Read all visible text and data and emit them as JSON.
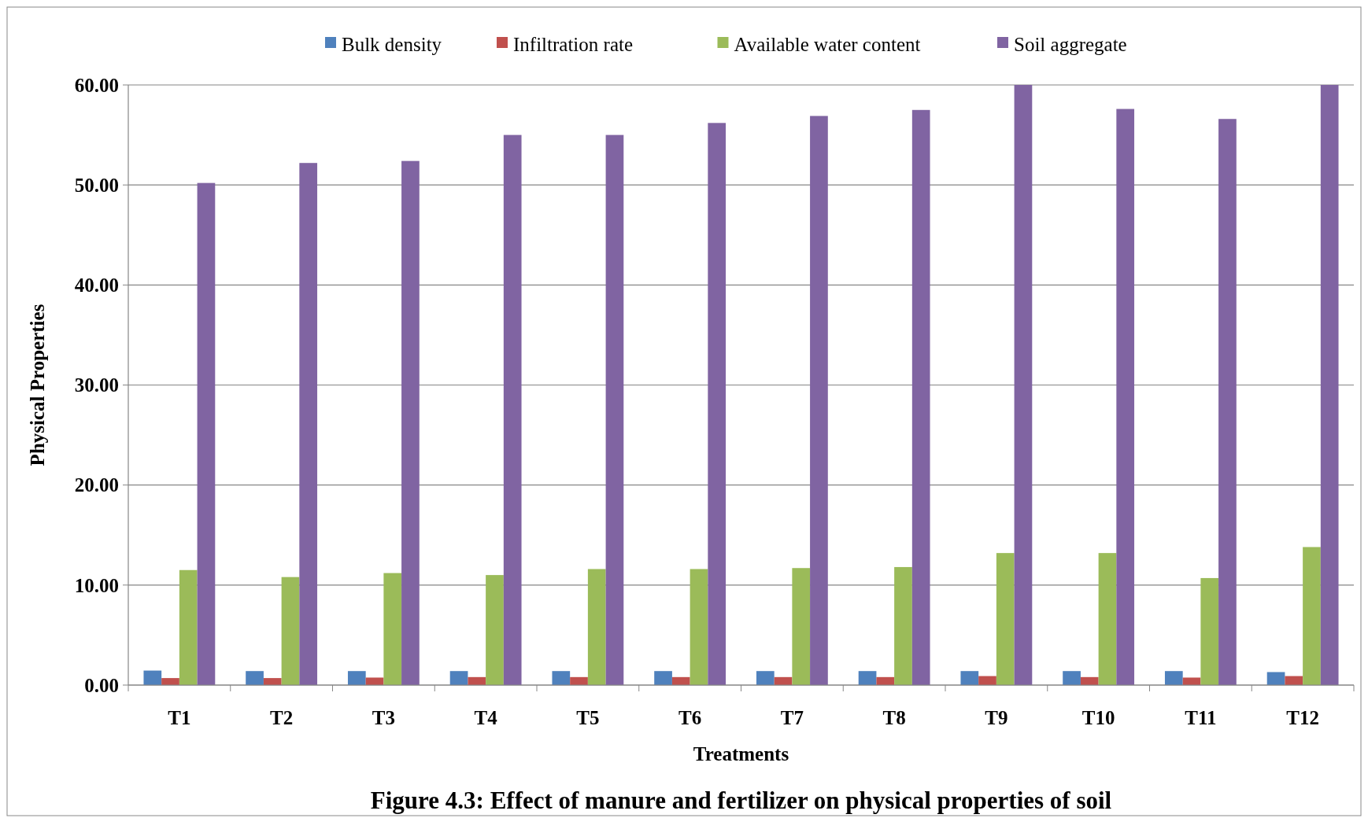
{
  "chart_data": {
    "type": "bar",
    "title": "Figure 4.3: Effect of manure and fertilizer on physical properties of soil",
    "xlabel": "Treatments",
    "ylabel": "Physical Properties",
    "categories": [
      "T1",
      "T2",
      "T3",
      "T4",
      "T5",
      "T6",
      "T7",
      "T8",
      "T9",
      "T10",
      "T11",
      "T12"
    ],
    "series": [
      {
        "name": "Bulk density",
        "color": "#4f81bd",
        "values": [
          1.45,
          1.4,
          1.4,
          1.4,
          1.4,
          1.4,
          1.4,
          1.4,
          1.4,
          1.4,
          1.4,
          1.3
        ]
      },
      {
        "name": "Infiltration rate",
        "color": "#c0504d",
        "values": [
          0.7,
          0.7,
          0.75,
          0.8,
          0.8,
          0.8,
          0.8,
          0.8,
          0.9,
          0.8,
          0.75,
          0.9
        ]
      },
      {
        "name": "Available water content",
        "color": "#9bbb59",
        "values": [
          11.5,
          10.8,
          11.2,
          11.0,
          11.6,
          11.6,
          11.7,
          11.8,
          13.2,
          13.2,
          10.7,
          13.8
        ]
      },
      {
        "name": "Soil aggregate",
        "color": "#8064a2",
        "values": [
          50.2,
          52.2,
          52.4,
          55.0,
          55.0,
          56.2,
          56.9,
          57.5,
          60.0,
          57.6,
          56.6,
          60.0
        ]
      }
    ],
    "ylim": [
      0,
      60
    ],
    "yticks": [
      {
        "value": 0,
        "label": "0.00"
      },
      {
        "value": 10,
        "label": "10.00"
      },
      {
        "value": 20,
        "label": "20.00"
      },
      {
        "value": 30,
        "label": "30.00"
      },
      {
        "value": 40,
        "label": "40.00"
      },
      {
        "value": 50,
        "label": "50.00"
      },
      {
        "value": 60,
        "label": "60.00"
      }
    ],
    "grid": "y",
    "legend": "top"
  }
}
